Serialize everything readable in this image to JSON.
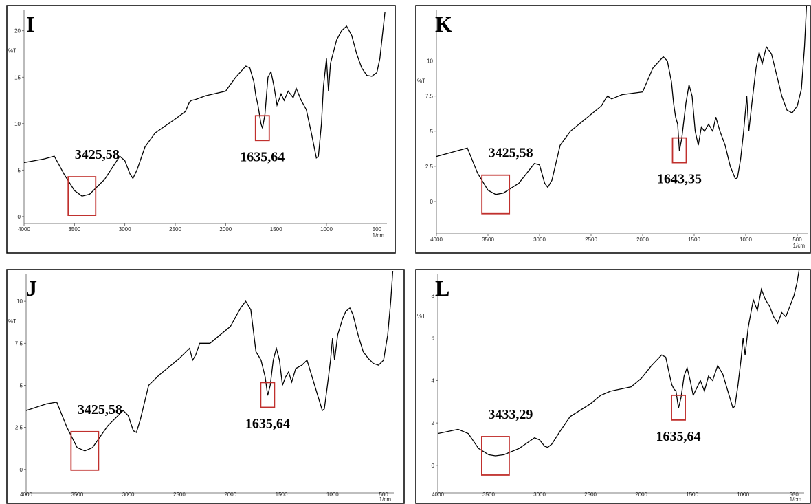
{
  "chart_data": [
    {
      "type": "line",
      "title": "I",
      "y_label": "%T",
      "x_label": "1/cm",
      "color": "#000000",
      "annotation_color": "#c0302d",
      "xlim": [
        4000,
        400
      ],
      "xticks": [
        4000,
        3500,
        3000,
        2500,
        2000,
        1500,
        1000,
        500
      ],
      "ylim": [
        -0.75,
        22.2
      ],
      "yticks": [
        0,
        5,
        10,
        15,
        20
      ],
      "annotations": [
        {
          "value": 3425.58,
          "label": "3425,58"
        },
        {
          "value": 1635.64,
          "label": "1635,64"
        }
      ],
      "x": [
        4000,
        3800,
        3700,
        3600,
        3500,
        3425,
        3350,
        3200,
        3050,
        3000,
        2950,
        2920,
        2880,
        2800,
        2700,
        2500,
        2400,
        2360,
        2340,
        2300,
        2200,
        2000,
        1900,
        1800,
        1760,
        1720,
        1700,
        1680,
        1650,
        1635,
        1610,
        1580,
        1550,
        1520,
        1490,
        1450,
        1420,
        1380,
        1330,
        1300,
        1250,
        1200,
        1150,
        1100,
        1080,
        1050,
        1030,
        1000,
        980,
        960,
        900,
        850,
        800,
        750,
        700,
        650,
        600,
        550,
        500,
        470,
        440,
        420
      ],
      "y": [
        5.8,
        6.2,
        6.5,
        4.5,
        2.8,
        2.2,
        2.4,
        4.0,
        6.5,
        6.0,
        4.6,
        4.1,
        5.0,
        7.5,
        9.0,
        10.5,
        11.3,
        12.3,
        12.5,
        12.6,
        13.0,
        13.5,
        15.0,
        16.2,
        16.0,
        14.5,
        13.0,
        12.0,
        10.0,
        9.5,
        11.0,
        15.0,
        15.6,
        14.0,
        12.0,
        13.2,
        12.5,
        13.5,
        12.8,
        13.8,
        12.5,
        11.5,
        9.0,
        6.3,
        6.5,
        10.0,
        14.0,
        17.0,
        13.5,
        16.5,
        19.0,
        20.0,
        20.5,
        19.5,
        17.5,
        16.0,
        15.2,
        15.1,
        15.5,
        17.0,
        20.0,
        22.0
      ]
    },
    {
      "type": "line",
      "title": "K",
      "y_label": "%T",
      "x_label": "1/cm",
      "color": "#000000",
      "annotation_color": "#c0302d",
      "xlim": [
        4000,
        400
      ],
      "xticks": [
        4000,
        3500,
        3000,
        2500,
        2000,
        1500,
        1000,
        500
      ],
      "ylim": [
        -2.3,
        13.6
      ],
      "yticks": [
        0,
        2.5,
        5,
        7.5,
        10
      ],
      "annotations": [
        {
          "value": 3425.58,
          "label": "3425,58"
        },
        {
          "value": 1643.35,
          "label": "1643,35"
        }
      ],
      "x": [
        4000,
        3800,
        3700,
        3600,
        3500,
        3425,
        3350,
        3200,
        3050,
        3000,
        2950,
        2920,
        2880,
        2800,
        2700,
        2500,
        2400,
        2360,
        2340,
        2300,
        2200,
        2000,
        1900,
        1800,
        1760,
        1720,
        1700,
        1680,
        1660,
        1643,
        1620,
        1580,
        1550,
        1520,
        1490,
        1460,
        1430,
        1400,
        1360,
        1320,
        1290,
        1250,
        1200,
        1150,
        1100,
        1080,
        1050,
        1020,
        990,
        970,
        940,
        900,
        870,
        840,
        800,
        750,
        700,
        650,
        600,
        550,
        500,
        460,
        430,
        410
      ],
      "y": [
        3.2,
        3.6,
        3.8,
        2.0,
        0.8,
        0.5,
        0.6,
        1.3,
        2.7,
        2.6,
        1.3,
        1.0,
        1.5,
        4.0,
        5.0,
        6.2,
        6.8,
        7.3,
        7.5,
        7.3,
        7.6,
        7.8,
        9.5,
        10.3,
        10.0,
        8.5,
        7.0,
        6.0,
        5.5,
        3.6,
        4.5,
        7.0,
        8.3,
        7.5,
        5.0,
        4.0,
        5.3,
        5.0,
        5.5,
        5.0,
        6.0,
        5.0,
        4.0,
        2.5,
        1.6,
        1.7,
        3.0,
        5.0,
        7.5,
        5.0,
        7.0,
        9.5,
        10.6,
        9.8,
        11.0,
        10.5,
        9.0,
        7.5,
        6.5,
        6.3,
        6.8,
        8.0,
        11.0,
        14.0
      ]
    },
    {
      "type": "line",
      "title": "J",
      "y_label": "%T",
      "x_label": "1/cm",
      "color": "#000000",
      "annotation_color": "#c0302d",
      "xlim": [
        4000,
        400
      ],
      "xticks": [
        4000,
        3500,
        3000,
        2500,
        2000,
        1500,
        1000,
        500
      ],
      "ylim": [
        -1.4,
        11.6
      ],
      "yticks": [
        0,
        2.5,
        5,
        7.5,
        10
      ],
      "annotations": [
        {
          "value": 3425.58,
          "label": "3425,58"
        },
        {
          "value": 1635.64,
          "label": "1635,64"
        }
      ],
      "x": [
        4000,
        3800,
        3700,
        3600,
        3500,
        3425,
        3350,
        3200,
        3050,
        3000,
        2950,
        2920,
        2880,
        2800,
        2700,
        2500,
        2400,
        2370,
        2340,
        2300,
        2200,
        2000,
        1900,
        1850,
        1800,
        1750,
        1700,
        1680,
        1660,
        1635,
        1610,
        1580,
        1550,
        1520,
        1490,
        1460,
        1430,
        1400,
        1360,
        1300,
        1250,
        1200,
        1150,
        1100,
        1080,
        1050,
        1020,
        1000,
        980,
        950,
        900,
        870,
        830,
        800,
        750,
        700,
        650,
        600,
        550,
        500,
        460,
        430,
        410
      ],
      "y": [
        3.5,
        3.9,
        4.0,
        2.5,
        1.3,
        1.1,
        1.3,
        2.6,
        3.5,
        3.2,
        2.3,
        2.2,
        3.0,
        5.0,
        5.6,
        6.6,
        7.2,
        6.5,
        6.8,
        7.5,
        7.5,
        8.5,
        9.6,
        10.0,
        9.5,
        7.0,
        6.5,
        6.0,
        5.5,
        4.4,
        5.0,
        6.5,
        7.2,
        6.5,
        5.0,
        5.5,
        5.8,
        5.2,
        6.0,
        6.2,
        6.5,
        5.5,
        4.5,
        3.5,
        3.6,
        5.0,
        6.5,
        7.8,
        6.5,
        8.0,
        9.0,
        9.4,
        9.6,
        9.2,
        8.0,
        7.0,
        6.6,
        6.3,
        6.2,
        6.5,
        8.0,
        10.0,
        11.8
      ]
    },
    {
      "type": "line",
      "title": "L",
      "y_label": "%T",
      "x_label": "1/cm",
      "color": "#000000",
      "annotation_color": "#c0302d",
      "xlim": [
        4000,
        400
      ],
      "xticks": [
        4000,
        3500,
        3000,
        2500,
        2000,
        1500,
        1000,
        500
      ],
      "ylim": [
        -1.3,
        9.0
      ],
      "yticks": [
        0,
        2,
        4,
        6,
        8
      ],
      "annotations": [
        {
          "value": 3433.29,
          "label": "3433,29"
        },
        {
          "value": 1635.64,
          "label": "1635,64"
        }
      ],
      "x": [
        4000,
        3800,
        3700,
        3600,
        3500,
        3433,
        3350,
        3200,
        3050,
        3000,
        2950,
        2920,
        2880,
        2800,
        2700,
        2500,
        2400,
        2300,
        2200,
        2100,
        2000,
        1900,
        1800,
        1760,
        1720,
        1700,
        1680,
        1660,
        1635,
        1610,
        1580,
        1550,
        1520,
        1490,
        1460,
        1420,
        1380,
        1340,
        1300,
        1250,
        1200,
        1150,
        1100,
        1080,
        1050,
        1020,
        1000,
        980,
        950,
        900,
        860,
        820,
        780,
        740,
        700,
        660,
        620,
        580,
        540,
        500,
        470,
        450
      ],
      "y": [
        1.5,
        1.7,
        1.5,
        0.8,
        0.5,
        0.45,
        0.5,
        0.8,
        1.3,
        1.2,
        0.9,
        0.85,
        1.0,
        1.6,
        2.3,
        2.9,
        3.3,
        3.5,
        3.6,
        3.7,
        4.1,
        4.7,
        5.2,
        5.1,
        4.2,
        3.8,
        3.6,
        3.5,
        2.7,
        3.2,
        4.2,
        4.6,
        4.0,
        3.3,
        3.6,
        4.0,
        3.5,
        4.2,
        4.0,
        4.7,
        4.3,
        3.5,
        2.7,
        2.8,
        3.8,
        5.0,
        6.0,
        5.2,
        6.5,
        7.8,
        7.3,
        8.3,
        7.8,
        7.5,
        7.0,
        6.7,
        7.2,
        7.0,
        7.5,
        8.0,
        8.6,
        9.2
      ]
    }
  ]
}
